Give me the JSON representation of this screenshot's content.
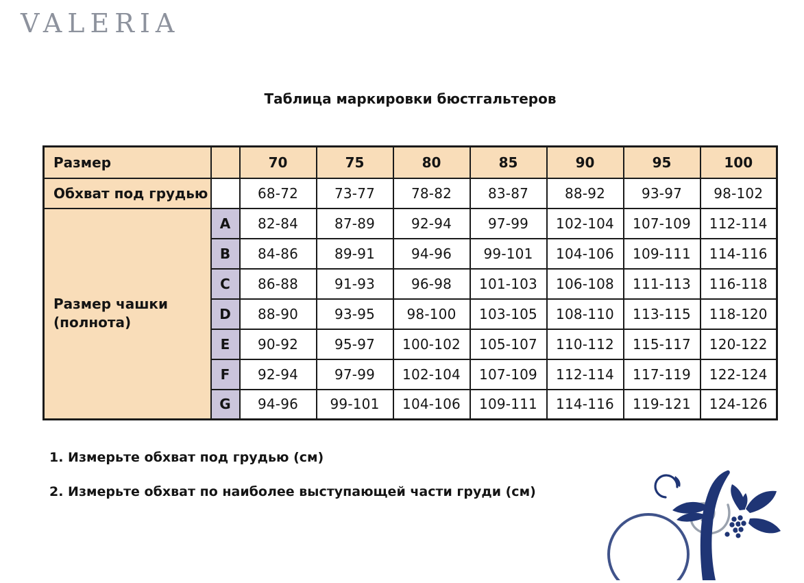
{
  "brand": "VALERIA",
  "title": "Таблица маркировки бюстгальтеров",
  "table": {
    "size_row_label": "Размер",
    "underbust_row_label": "Обхват под грудью",
    "cup_label": "Размер чашки (полнота)",
    "sizes": [
      "70",
      "75",
      "80",
      "85",
      "90",
      "95",
      "100"
    ],
    "underbust": [
      "68-72",
      "73-77",
      "78-82",
      "83-87",
      "88-92",
      "93-97",
      "98-102"
    ],
    "cups": [
      {
        "letter": "A",
        "values": [
          "82-84",
          "87-89",
          "92-94",
          "97-99",
          "102-104",
          "107-109",
          "112-114"
        ]
      },
      {
        "letter": "B",
        "values": [
          "84-86",
          "89-91",
          "94-96",
          "99-101",
          "104-106",
          "109-111",
          "114-116"
        ]
      },
      {
        "letter": "C",
        "values": [
          "86-88",
          "91-93",
          "96-98",
          "101-103",
          "106-108",
          "111-113",
          "116-118"
        ]
      },
      {
        "letter": "D",
        "values": [
          "88-90",
          "93-95",
          "98-100",
          "103-105",
          "108-110",
          "113-115",
          "118-120"
        ]
      },
      {
        "letter": "E",
        "values": [
          "90-92",
          "95-97",
          "100-102",
          "105-107",
          "110-112",
          "115-117",
          "120-122"
        ]
      },
      {
        "letter": "F",
        "values": [
          "92-94",
          "97-99",
          "102-104",
          "107-109",
          "112-114",
          "117-119",
          "122-124"
        ]
      },
      {
        "letter": "G",
        "values": [
          "94-96",
          "99-101",
          "104-106",
          "109-111",
          "114-116",
          "119-121",
          "124-126"
        ]
      }
    ]
  },
  "instructions": [
    "1. Измерьте обхват под грудью (см)",
    "2. Измерьте обхват по наиболее выступающей части груди (см)"
  ],
  "icons": {
    "ornament": "floral-ornament-icon"
  },
  "colors": {
    "peach": "#f9ddb9",
    "lavender": "#cbc5dc",
    "border": "#1a1a1a",
    "navy": "#1f3575",
    "swirl_gray": "#9aa2ae",
    "logo_gray": "#8d929d"
  }
}
